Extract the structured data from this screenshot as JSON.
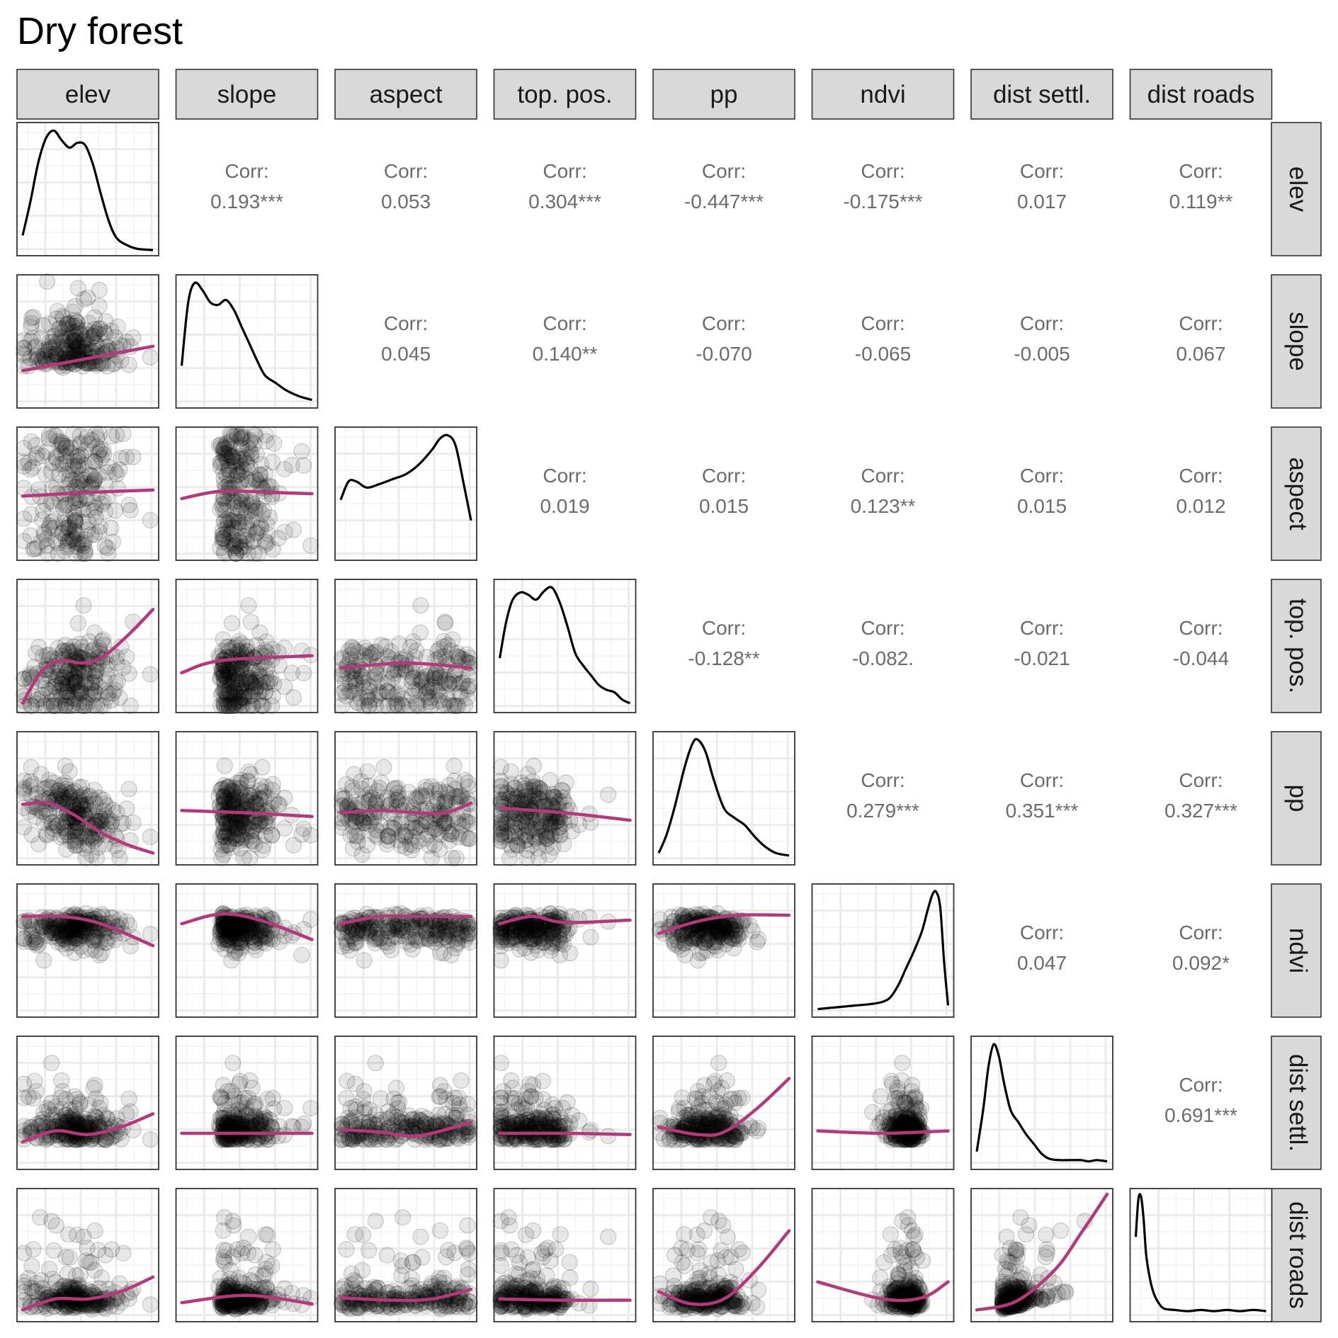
{
  "chart_data": {
    "type": "scatter-matrix",
    "title": "Dry forest",
    "variables": [
      "elev",
      "slope",
      "aspect",
      "top. pos.",
      "pp",
      "ndvi",
      "dist settl.",
      "dist roads"
    ],
    "corr_label": "Corr:",
    "correlations": [
      [
        "",
        "0.193***",
        "0.053",
        "0.304***",
        "-0.447***",
        "-0.175***",
        "0.017",
        "0.119**"
      ],
      [
        "",
        "",
        "0.045",
        "0.140**",
        "-0.070",
        "-0.065",
        "-0.005",
        "0.067"
      ],
      [
        "",
        "",
        "",
        "0.019",
        "0.015",
        "0.123**",
        "0.015",
        "0.012"
      ],
      [
        "",
        "",
        "",
        "",
        "-0.128**",
        "-0.082.",
        "-0.021",
        "-0.044"
      ],
      [
        "",
        "",
        "",
        "",
        "",
        "0.279***",
        "0.351***",
        "0.327***"
      ],
      [
        "",
        "",
        "",
        "",
        "",
        "",
        "0.047",
        "0.092*"
      ],
      [
        "",
        "",
        "",
        "",
        "",
        "",
        "",
        "0.691***"
      ],
      [
        "",
        "",
        "",
        "",
        "",
        "",
        "",
        ""
      ]
    ],
    "densities": [
      [
        [
          0.0,
          0.12
        ],
        [
          0.06,
          0.4
        ],
        [
          0.12,
          0.72
        ],
        [
          0.18,
          0.92
        ],
        [
          0.24,
          0.98
        ],
        [
          0.3,
          0.9
        ],
        [
          0.36,
          0.84
        ],
        [
          0.42,
          0.88
        ],
        [
          0.48,
          0.86
        ],
        [
          0.54,
          0.7
        ],
        [
          0.6,
          0.46
        ],
        [
          0.66,
          0.24
        ],
        [
          0.72,
          0.1
        ],
        [
          0.8,
          0.04
        ],
        [
          0.88,
          0.01
        ],
        [
          1.0,
          0.0
        ]
      ],
      [
        [
          0.0,
          0.3
        ],
        [
          0.05,
          0.82
        ],
        [
          0.1,
          0.98
        ],
        [
          0.16,
          0.92
        ],
        [
          0.22,
          0.82
        ],
        [
          0.28,
          0.8
        ],
        [
          0.34,
          0.84
        ],
        [
          0.4,
          0.76
        ],
        [
          0.46,
          0.62
        ],
        [
          0.52,
          0.48
        ],
        [
          0.58,
          0.34
        ],
        [
          0.64,
          0.22
        ],
        [
          0.72,
          0.16
        ],
        [
          0.8,
          0.1
        ],
        [
          0.9,
          0.05
        ],
        [
          1.0,
          0.02
        ]
      ],
      [
        [
          0.0,
          0.45
        ],
        [
          0.06,
          0.6
        ],
        [
          0.12,
          0.6
        ],
        [
          0.2,
          0.55
        ],
        [
          0.3,
          0.58
        ],
        [
          0.4,
          0.62
        ],
        [
          0.5,
          0.66
        ],
        [
          0.6,
          0.74
        ],
        [
          0.7,
          0.86
        ],
        [
          0.76,
          0.95
        ],
        [
          0.82,
          0.98
        ],
        [
          0.88,
          0.9
        ],
        [
          0.94,
          0.6
        ],
        [
          1.0,
          0.28
        ]
      ],
      [
        [
          0.0,
          0.4
        ],
        [
          0.05,
          0.7
        ],
        [
          0.1,
          0.88
        ],
        [
          0.16,
          0.94
        ],
        [
          0.22,
          0.92
        ],
        [
          0.28,
          0.88
        ],
        [
          0.34,
          0.95
        ],
        [
          0.4,
          0.98
        ],
        [
          0.46,
          0.86
        ],
        [
          0.52,
          0.66
        ],
        [
          0.58,
          0.44
        ],
        [
          0.64,
          0.34
        ],
        [
          0.7,
          0.26
        ],
        [
          0.76,
          0.18
        ],
        [
          0.82,
          0.14
        ],
        [
          0.88,
          0.12
        ],
        [
          0.94,
          0.06
        ],
        [
          1.0,
          0.03
        ]
      ],
      [
        [
          0.0,
          0.05
        ],
        [
          0.06,
          0.2
        ],
        [
          0.12,
          0.42
        ],
        [
          0.2,
          0.76
        ],
        [
          0.26,
          0.95
        ],
        [
          0.3,
          0.98
        ],
        [
          0.36,
          0.88
        ],
        [
          0.42,
          0.66
        ],
        [
          0.5,
          0.42
        ],
        [
          0.58,
          0.34
        ],
        [
          0.66,
          0.28
        ],
        [
          0.74,
          0.18
        ],
        [
          0.82,
          0.1
        ],
        [
          0.9,
          0.05
        ],
        [
          1.0,
          0.03
        ]
      ],
      [
        [
          0.0,
          0.02
        ],
        [
          0.1,
          0.03
        ],
        [
          0.2,
          0.04
        ],
        [
          0.3,
          0.05
        ],
        [
          0.4,
          0.06
        ],
        [
          0.5,
          0.08
        ],
        [
          0.56,
          0.12
        ],
        [
          0.62,
          0.22
        ],
        [
          0.68,
          0.36
        ],
        [
          0.74,
          0.5
        ],
        [
          0.8,
          0.66
        ],
        [
          0.84,
          0.82
        ],
        [
          0.88,
          0.96
        ],
        [
          0.91,
          0.98
        ],
        [
          0.94,
          0.85
        ],
        [
          0.97,
          0.4
        ],
        [
          1.0,
          0.05
        ]
      ],
      [
        [
          0.0,
          0.1
        ],
        [
          0.05,
          0.45
        ],
        [
          0.09,
          0.8
        ],
        [
          0.13,
          0.98
        ],
        [
          0.17,
          0.88
        ],
        [
          0.21,
          0.66
        ],
        [
          0.26,
          0.44
        ],
        [
          0.32,
          0.34
        ],
        [
          0.38,
          0.24
        ],
        [
          0.44,
          0.16
        ],
        [
          0.5,
          0.08
        ],
        [
          0.56,
          0.04
        ],
        [
          0.64,
          0.03
        ],
        [
          0.72,
          0.03
        ],
        [
          0.8,
          0.03
        ],
        [
          0.86,
          0.02
        ],
        [
          0.92,
          0.03
        ],
        [
          1.0,
          0.02
        ]
      ],
      [
        [
          0.0,
          0.65
        ],
        [
          0.02,
          0.96
        ],
        [
          0.04,
          0.98
        ],
        [
          0.06,
          0.8
        ],
        [
          0.08,
          0.5
        ],
        [
          0.11,
          0.3
        ],
        [
          0.14,
          0.18
        ],
        [
          0.18,
          0.1
        ],
        [
          0.22,
          0.06
        ],
        [
          0.3,
          0.05
        ],
        [
          0.4,
          0.04
        ],
        [
          0.5,
          0.05
        ],
        [
          0.6,
          0.04
        ],
        [
          0.7,
          0.05
        ],
        [
          0.8,
          0.04
        ],
        [
          0.9,
          0.05
        ],
        [
          1.0,
          0.04
        ]
      ]
    ],
    "smooth_fits": [
      [],
      [
        [
          [
            0,
            0.26
          ],
          [
            0.5,
            0.36
          ],
          [
            1,
            0.46
          ]
        ]
      ],
      [
        [
          [
            0,
            0.48
          ],
          [
            0.5,
            0.51
          ],
          [
            1,
            0.53
          ]
        ],
        [
          [
            0,
            0.46
          ],
          [
            0.3,
            0.52
          ],
          [
            0.7,
            0.51
          ],
          [
            1,
            0.5
          ]
        ]
      ],
      [
        [
          [
            0,
            0.03
          ],
          [
            0.15,
            0.3
          ],
          [
            0.3,
            0.38
          ],
          [
            0.45,
            0.36
          ],
          [
            0.6,
            0.4
          ],
          [
            0.8,
            0.58
          ],
          [
            1,
            0.8
          ]
        ],
        [
          [
            0,
            0.28
          ],
          [
            0.3,
            0.38
          ],
          [
            1,
            0.42
          ]
        ],
        [
          [
            0,
            0.32
          ],
          [
            0.5,
            0.36
          ],
          [
            1,
            0.32
          ]
        ]
      ],
      [
        [
          [
            0,
            0.45
          ],
          [
            0.2,
            0.46
          ],
          [
            0.4,
            0.36
          ],
          [
            0.6,
            0.22
          ],
          [
            0.8,
            0.12
          ],
          [
            1,
            0.05
          ]
        ],
        [
          [
            0,
            0.4
          ],
          [
            0.5,
            0.38
          ],
          [
            1,
            0.35
          ]
        ],
        [
          [
            0,
            0.38
          ],
          [
            0.3,
            0.4
          ],
          [
            0.6,
            0.38
          ],
          [
            0.8,
            0.38
          ],
          [
            1,
            0.46
          ]
        ],
        [
          [
            0,
            0.42
          ],
          [
            0.5,
            0.38
          ],
          [
            1,
            0.32
          ]
        ]
      ],
      [
        [
          [
            0,
            0.78
          ],
          [
            0.3,
            0.78
          ],
          [
            0.6,
            0.72
          ],
          [
            1,
            0.54
          ]
        ],
        [
          [
            0,
            0.72
          ],
          [
            0.3,
            0.8
          ],
          [
            0.6,
            0.75
          ],
          [
            1,
            0.59
          ]
        ],
        [
          [
            0,
            0.72
          ],
          [
            0.3,
            0.78
          ],
          [
            0.6,
            0.78
          ],
          [
            1,
            0.78
          ]
        ],
        [
          [
            0,
            0.72
          ],
          [
            0.25,
            0.78
          ],
          [
            0.5,
            0.73
          ],
          [
            1,
            0.75
          ]
        ],
        [
          [
            0,
            0.64
          ],
          [
            0.3,
            0.74
          ],
          [
            0.6,
            0.79
          ],
          [
            1,
            0.79
          ]
        ]
      ],
      [
        [
          [
            0,
            0.18
          ],
          [
            0.25,
            0.27
          ],
          [
            0.5,
            0.24
          ],
          [
            0.75,
            0.3
          ],
          [
            1,
            0.41
          ]
        ],
        [
          [
            0,
            0.25
          ],
          [
            0.5,
            0.25
          ],
          [
            1,
            0.25
          ]
        ],
        [
          [
            0,
            0.28
          ],
          [
            0.3,
            0.26
          ],
          [
            0.6,
            0.23
          ],
          [
            1,
            0.34
          ]
        ],
        [
          [
            0,
            0.25
          ],
          [
            0.5,
            0.25
          ],
          [
            1,
            0.24
          ]
        ],
        [
          [
            0,
            0.3
          ],
          [
            0.3,
            0.24
          ],
          [
            0.5,
            0.26
          ],
          [
            0.75,
            0.45
          ],
          [
            1,
            0.7
          ]
        ],
        [
          [
            0,
            0.27
          ],
          [
            0.5,
            0.25
          ],
          [
            1,
            0.27
          ]
        ]
      ],
      [
        [
          [
            0,
            0.05
          ],
          [
            0.25,
            0.14
          ],
          [
            0.5,
            0.14
          ],
          [
            0.75,
            0.2
          ],
          [
            1,
            0.32
          ]
        ],
        [
          [
            0,
            0.11
          ],
          [
            0.5,
            0.17
          ],
          [
            1,
            0.1
          ]
        ],
        [
          [
            0,
            0.15
          ],
          [
            0.4,
            0.13
          ],
          [
            0.7,
            0.14
          ],
          [
            1,
            0.22
          ]
        ],
        [
          [
            0,
            0.14
          ],
          [
            0.5,
            0.13
          ],
          [
            1,
            0.13
          ]
        ],
        [
          [
            0,
            0.2
          ],
          [
            0.25,
            0.1
          ],
          [
            0.5,
            0.14
          ],
          [
            0.75,
            0.38
          ],
          [
            1,
            0.7
          ]
        ],
        [
          [
            0,
            0.28
          ],
          [
            0.5,
            0.14
          ],
          [
            0.8,
            0.15
          ],
          [
            1,
            0.28
          ]
        ],
        [
          [
            0,
            0.05
          ],
          [
            0.3,
            0.12
          ],
          [
            0.6,
            0.38
          ],
          [
            0.8,
            0.68
          ],
          [
            1,
            1.0
          ]
        ]
      ]
    ]
  }
}
